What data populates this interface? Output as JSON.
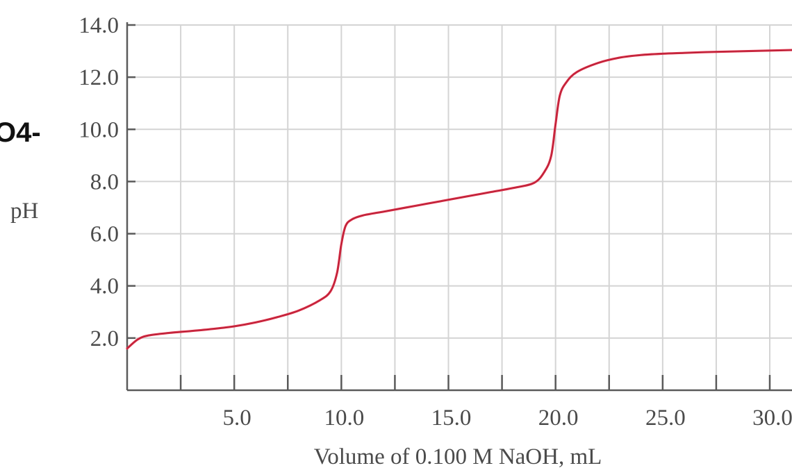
{
  "clipped_label": "O4-",
  "chart_data": {
    "type": "line",
    "title": "",
    "xlabel": "Volume of 0.100 M NaOH, mL",
    "ylabel": "pH",
    "xlim": [
      0,
      32
    ],
    "ylim": [
      0,
      14
    ],
    "x_ticks": [
      5,
      10,
      15,
      20,
      25,
      30
    ],
    "x_tick_labels": [
      "5.0",
      "10.0",
      "15.0",
      "20.0",
      "25.0",
      "30.0"
    ],
    "y_ticks": [
      2,
      4,
      6,
      8,
      10,
      12,
      14
    ],
    "y_tick_labels": [
      "2.0",
      "4.0",
      "6.0",
      "8.0",
      "10.0",
      "12.0",
      "14.0"
    ],
    "grid": true,
    "colors": {
      "curve": "#e0314a",
      "axis": "#5a5a5a",
      "grid": "#d4d4d4"
    },
    "series": [
      {
        "x": [
          0,
          0.5,
          1,
          2,
          3,
          4,
          5,
          6,
          7,
          8,
          9,
          9.5,
          9.8,
          10,
          10.2,
          10.5,
          11,
          12,
          13,
          14,
          15,
          16,
          17,
          18,
          19,
          19.5,
          19.8,
          20,
          20.2,
          20.5,
          21,
          22,
          23,
          24,
          25,
          26,
          27,
          28,
          29,
          30,
          31,
          32
        ],
        "values": [
          1.6,
          1.95,
          2.1,
          2.2,
          2.27,
          2.35,
          2.45,
          2.6,
          2.8,
          3.05,
          3.45,
          3.8,
          4.5,
          5.6,
          6.3,
          6.55,
          6.7,
          6.85,
          7.0,
          7.15,
          7.3,
          7.45,
          7.6,
          7.75,
          7.95,
          8.4,
          9.0,
          10.2,
          11.3,
          11.8,
          12.2,
          12.55,
          12.75,
          12.85,
          12.9,
          12.93,
          12.96,
          12.98,
          13.0,
          13.02,
          13.04,
          13.06
        ]
      }
    ]
  }
}
